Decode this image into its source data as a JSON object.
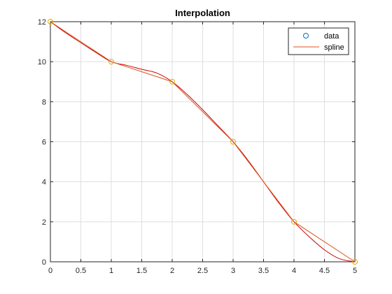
{
  "chart_data": {
    "type": "line",
    "title": "Interpolation",
    "xlabel": "",
    "ylabel": "",
    "xlim": [
      0,
      5
    ],
    "ylim": [
      0,
      12
    ],
    "xticks": [
      "0",
      "0.5",
      "1",
      "1.5",
      "2",
      "2.5",
      "3",
      "3.5",
      "4",
      "4.5",
      "5"
    ],
    "yticks": [
      "0",
      "2",
      "4",
      "6",
      "8",
      "10",
      "12"
    ],
    "grid": true,
    "legend_placement": "top-right",
    "series": [
      {
        "name": "data",
        "style": "markers",
        "color": "#0072bd",
        "x": [
          0,
          1,
          2,
          3,
          4,
          5
        ],
        "y": [
          12,
          10,
          9,
          6,
          2,
          0
        ]
      },
      {
        "name": "spline",
        "style": "line",
        "color": "#d95319",
        "x": [
          0,
          1,
          2,
          3,
          4,
          5
        ],
        "y": [
          12,
          10,
          9,
          6,
          2,
          0
        ]
      }
    ],
    "overlay_curve": {
      "color": "#cc0000",
      "x": [
        0,
        0.25,
        0.5,
        0.75,
        1,
        1.25,
        1.5,
        1.75,
        2,
        2.25,
        2.5,
        2.75,
        3,
        3.25,
        3.5,
        3.75,
        4,
        4.25,
        4.5,
        4.75,
        5
      ],
      "y": [
        12,
        11.45,
        10.95,
        10.46,
        10,
        9.82,
        9.62,
        9.43,
        9,
        8.35,
        7.6,
        6.8,
        6,
        5.05,
        4.0,
        2.95,
        2,
        1.25,
        0.6,
        0.15,
        0
      ]
    },
    "marker_color": "#e6a800"
  }
}
